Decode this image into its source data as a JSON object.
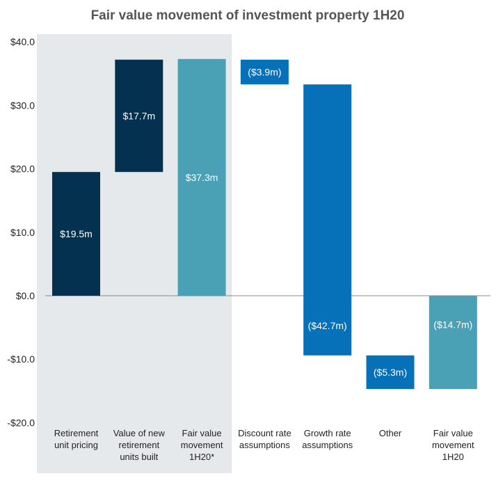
{
  "chart_data": {
    "type": "waterfall",
    "title": "Fair value movement of investment property 1H20",
    "ylim": [
      -20,
      40
    ],
    "yticks": [
      40,
      30,
      20,
      10,
      0,
      -10,
      -20
    ],
    "ytick_labels": [
      "$40.0",
      "$30.0",
      "$20.0",
      "$10.0",
      "$0.0",
      "-$10.0",
      "-$20.0"
    ],
    "highlight_region": "first three categories shaded grey",
    "bars": [
      {
        "category": [
          "Retirement",
          "unit pricing"
        ],
        "start": 0,
        "end": 19.5,
        "label": "$19.5m",
        "color": "#04314f"
      },
      {
        "category": [
          "Value of new",
          "retirement",
          "units built"
        ],
        "start": 19.5,
        "end": 37.2,
        "label": "$17.7m",
        "color": "#04314f"
      },
      {
        "category": [
          "Fair value",
          "movement",
          "1H20*"
        ],
        "start": 0,
        "end": 37.3,
        "label": "$37.3m",
        "color": "#4aa0b4"
      },
      {
        "category": [
          "Discount rate",
          "assumptions"
        ],
        "start": 37.2,
        "end": 33.3,
        "label": "($3.9m)",
        "color": "#0670b8"
      },
      {
        "category": [
          "Growth rate",
          "assumptions"
        ],
        "start": 33.3,
        "end": -9.4,
        "label": "($42.7m)",
        "color": "#0670b8"
      },
      {
        "category": [
          "Other"
        ],
        "start": -9.4,
        "end": -14.7,
        "label": "($5.3m)",
        "color": "#0670b8"
      },
      {
        "category": [
          "Fair value",
          "movement",
          "1H20"
        ],
        "start": 0,
        "end": -14.7,
        "label": "($14.7m)",
        "color": "#4aa0b4"
      }
    ]
  }
}
